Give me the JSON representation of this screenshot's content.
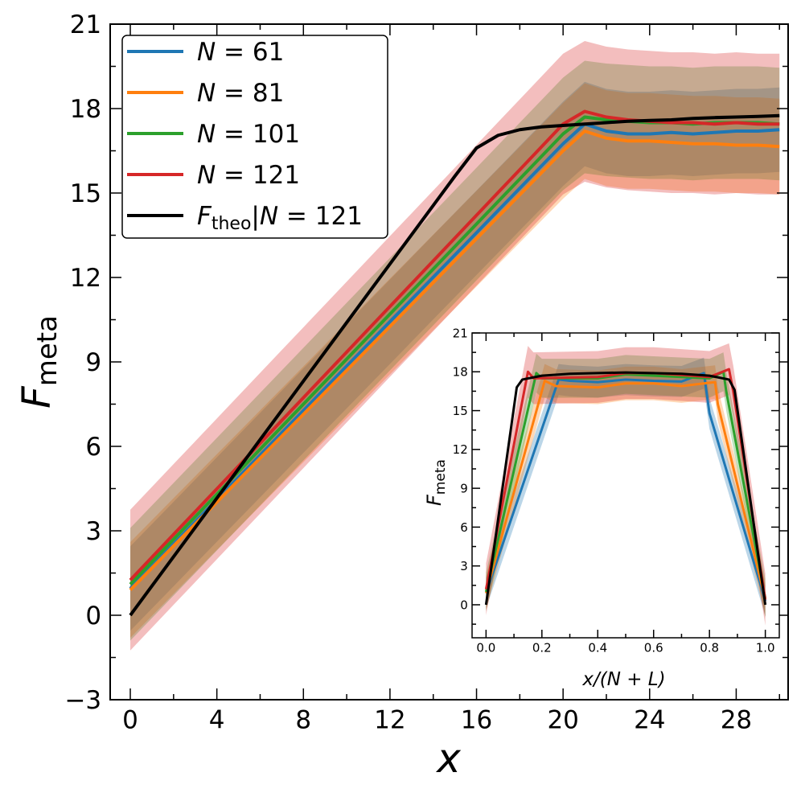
{
  "chart_data": [
    {
      "type": "line",
      "panel": "main",
      "xlabel": "x",
      "ylabel": {
        "main": "F",
        "sub": "meta"
      },
      "xlim": [
        -0.93,
        30.4
      ],
      "ylim": [
        -3,
        21
      ],
      "xticks": [
        0,
        4,
        8,
        12,
        16,
        20,
        24,
        28
      ],
      "yticks": [
        -3,
        0,
        3,
        6,
        9,
        12,
        15,
        18,
        21
      ],
      "x": [
        0,
        1,
        2,
        3,
        4,
        5,
        6,
        7,
        8,
        9,
        10,
        11,
        12,
        13,
        14,
        15,
        16,
        17,
        18,
        19,
        20,
        21,
        22,
        23,
        24,
        25,
        26,
        27,
        28,
        29,
        30
      ],
      "series": [
        {
          "name": "N = 61",
          "color": "#1f77b4",
          "band_alpha": 0.3,
          "std": 1.5,
          "values": [
            0.95,
            1.74,
            2.53,
            3.32,
            4.11,
            4.9,
            5.69,
            6.48,
            7.27,
            8.06,
            8.85,
            9.64,
            10.43,
            11.22,
            12.01,
            12.8,
            13.59,
            14.38,
            15.17,
            15.96,
            16.75,
            17.45,
            17.2,
            17.1,
            17.1,
            17.15,
            17.1,
            17.15,
            17.2,
            17.2,
            17.25
          ]
        },
        {
          "name": "N = 81",
          "color": "#ff7f0e",
          "band_alpha": 0.3,
          "std": 1.7,
          "values": [
            0.9,
            1.68,
            2.46,
            3.24,
            4.02,
            4.8,
            5.58,
            6.36,
            7.14,
            7.92,
            8.7,
            9.48,
            10.26,
            11.04,
            11.82,
            12.6,
            13.38,
            14.16,
            14.94,
            15.72,
            16.5,
            17.2,
            16.95,
            16.85,
            16.85,
            16.8,
            16.75,
            16.75,
            16.7,
            16.7,
            16.65
          ]
        },
        {
          "name": "N = 101",
          "color": "#2ca02c",
          "band_alpha": 0.3,
          "std": 2.0,
          "values": [
            1.1,
            1.9,
            2.7,
            3.5,
            4.3,
            5.1,
            5.9,
            6.7,
            7.5,
            8.3,
            9.1,
            9.9,
            10.7,
            11.5,
            12.3,
            13.1,
            13.9,
            14.7,
            15.5,
            16.3,
            17.1,
            17.7,
            17.6,
            17.55,
            17.5,
            17.5,
            17.45,
            17.5,
            17.5,
            17.5,
            17.45
          ]
        },
        {
          "name": "N = 121",
          "color": "#d62728",
          "band_alpha": 0.3,
          "std": 2.5,
          "values": [
            1.25,
            2.06,
            2.87,
            3.68,
            4.49,
            5.3,
            6.11,
            6.92,
            7.73,
            8.54,
            9.35,
            10.16,
            10.97,
            11.78,
            12.59,
            13.4,
            14.21,
            15.02,
            15.83,
            16.64,
            17.45,
            17.9,
            17.7,
            17.6,
            17.55,
            17.5,
            17.5,
            17.45,
            17.5,
            17.45,
            17.45
          ]
        },
        {
          "name": "F_theo|N = 121",
          "color": "#000000",
          "std": 0,
          "values": [
            0,
            1.04,
            2.08,
            3.12,
            4.16,
            5.2,
            6.24,
            7.28,
            8.32,
            9.36,
            10.4,
            11.44,
            12.48,
            13.52,
            14.56,
            15.6,
            16.6,
            17.05,
            17.25,
            17.35,
            17.4,
            17.45,
            17.5,
            17.55,
            17.58,
            17.6,
            17.65,
            17.68,
            17.7,
            17.72,
            17.75
          ]
        }
      ],
      "legend": {
        "placement": "top-left",
        "entries": [
          {
            "var": "N",
            "rest": " = 61",
            "color": "#1f77b4"
          },
          {
            "var": "N",
            "rest": " = 81",
            "color": "#ff7f0e"
          },
          {
            "var": "N",
            "rest": " = 101",
            "color": "#2ca02c"
          },
          {
            "var": "N",
            "rest": " = 121",
            "color": "#d62728"
          },
          {
            "var": "F",
            "sub": "theo",
            "mid": "|",
            "var2": "N",
            "rest": " = 121",
            "color": "#000000"
          }
        ]
      }
    },
    {
      "type": "line",
      "panel": "inset",
      "xlabel": "x/(N + L)",
      "ylabel": {
        "main": "F",
        "sub": "meta"
      },
      "xlim": [
        -0.05,
        1.05
      ],
      "ylim": [
        -2.55,
        21
      ],
      "xticks": [
        0.0,
        0.2,
        0.4,
        0.6,
        0.8,
        1.0
      ],
      "yticks": [
        0,
        3,
        6,
        9,
        12,
        15,
        18,
        21
      ],
      "series": [
        {
          "name": "N = 61",
          "color": "#1f77b4",
          "std": 1.2,
          "x": [
            0,
            0.26,
            0.3,
            0.4,
            0.5,
            0.6,
            0.7,
            0.78,
            0.8,
            1.0
          ],
          "values": [
            0.9,
            17.4,
            17.3,
            17.2,
            17.4,
            17.3,
            17.25,
            17.9,
            14.8,
            0.3
          ]
        },
        {
          "name": "N = 81",
          "color": "#ff7f0e",
          "std": 1.3,
          "x": [
            0,
            0.21,
            0.25,
            0.4,
            0.5,
            0.6,
            0.7,
            0.82,
            0.83,
            1.0
          ],
          "values": [
            0.9,
            17.3,
            16.9,
            16.8,
            17.1,
            17.1,
            16.9,
            17.2,
            15.5,
            0.4
          ]
        },
        {
          "name": "N = 101",
          "color": "#2ca02c",
          "std": 1.5,
          "x": [
            0,
            0.18,
            0.2,
            0.4,
            0.5,
            0.6,
            0.8,
            0.85,
            0.86,
            1.0
          ],
          "values": [
            1.0,
            17.9,
            17.5,
            17.5,
            17.8,
            17.7,
            17.5,
            18.0,
            16.5,
            0.5
          ]
        },
        {
          "name": "N = 121",
          "color": "#d62728",
          "std": 2.0,
          "x": [
            0,
            0.15,
            0.17,
            0.4,
            0.5,
            0.6,
            0.8,
            0.87,
            0.885,
            1.0
          ],
          "values": [
            1.2,
            18.0,
            17.5,
            17.6,
            17.9,
            17.9,
            17.6,
            18.2,
            16.5,
            0.4
          ]
        },
        {
          "name": "F_theo|N = 121",
          "color": "#000000",
          "std": 0,
          "x": [
            0,
            0.11,
            0.13,
            0.2,
            0.3,
            0.5,
            0.7,
            0.8,
            0.87,
            0.89,
            1.0
          ],
          "values": [
            0,
            16.8,
            17.4,
            17.7,
            17.85,
            17.95,
            17.85,
            17.7,
            17.4,
            16.6,
            0
          ]
        }
      ]
    }
  ]
}
